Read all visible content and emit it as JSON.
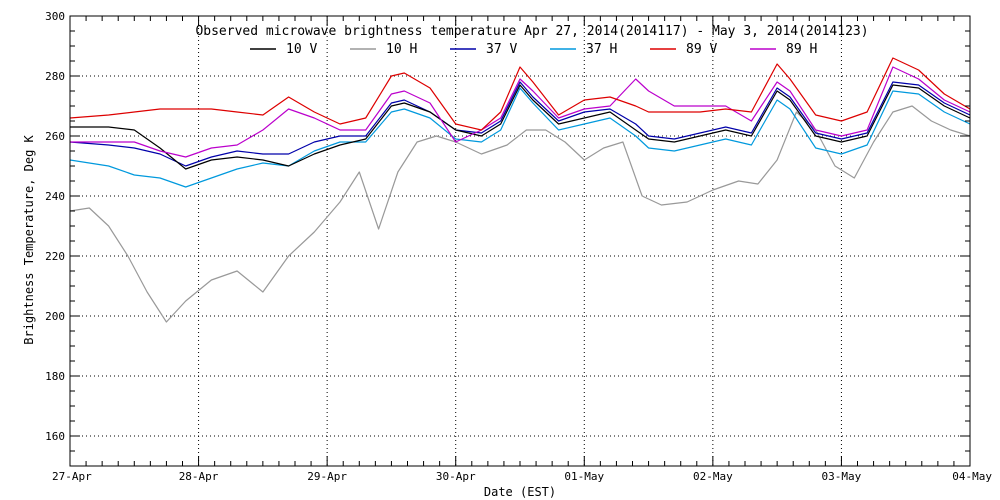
{
  "chart_data": {
    "type": "line",
    "title": "Observed microwave brightness temperature Apr 27, 2014(2014117) - May  3, 2014(2014123)",
    "xlabel": "Date (EST)",
    "ylabel": "Brightness Temperature, Deg K",
    "ylim": [
      150,
      300
    ],
    "xlim": [
      0,
      7
    ],
    "y_ticks": [
      160,
      180,
      200,
      220,
      240,
      260,
      280,
      300
    ],
    "x_tick_labels": [
      "27-Apr",
      "28-Apr",
      "29-Apr",
      "30-Apr",
      "01-May",
      "02-May",
      "03-May",
      "04-May"
    ],
    "grid": true,
    "legend_position": "top",
    "series": [
      {
        "name": "10 V",
        "color": "#000000",
        "x": [
          0,
          0.3,
          0.5,
          0.7,
          0.9,
          1.1,
          1.3,
          1.5,
          1.7,
          1.9,
          2.1,
          2.3,
          2.5,
          2.6,
          2.8,
          3.0,
          3.2,
          3.35,
          3.5,
          3.6,
          3.8,
          4.0,
          4.2,
          4.4,
          4.5,
          4.7,
          4.9,
          5.1,
          5.3,
          5.5,
          5.6,
          5.8,
          6.0,
          6.2,
          6.4,
          6.6,
          6.8,
          7.0
        ],
        "y": [
          263,
          263,
          262,
          256,
          249,
          252,
          253,
          252,
          250,
          254,
          257,
          259,
          270,
          271,
          268,
          262,
          260,
          264,
          277,
          272,
          264,
          266,
          268,
          262,
          259,
          258,
          260,
          262,
          260,
          275,
          272,
          260,
          258,
          260,
          277,
          276,
          270,
          266
        ]
      },
      {
        "name": "10 H",
        "color": "#999999",
        "x": [
          0,
          0.15,
          0.3,
          0.45,
          0.6,
          0.75,
          0.9,
          1.1,
          1.3,
          1.5,
          1.7,
          1.9,
          2.1,
          2.25,
          2.4,
          2.55,
          2.7,
          2.85,
          3.0,
          3.2,
          3.4,
          3.55,
          3.7,
          3.85,
          4.0,
          4.15,
          4.3,
          4.45,
          4.6,
          4.8,
          5.0,
          5.2,
          5.35,
          5.5,
          5.65,
          5.8,
          5.95,
          6.1,
          6.25,
          6.4,
          6.55,
          6.7,
          6.85,
          7.0
        ],
        "y": [
          235,
          236,
          230,
          220,
          208,
          198,
          205,
          212,
          215,
          208,
          220,
          228,
          238,
          248,
          229,
          248,
          258,
          260,
          258,
          254,
          257,
          262,
          262,
          258,
          252,
          256,
          258,
          240,
          237,
          238,
          242,
          245,
          244,
          252,
          268,
          262,
          250,
          246,
          258,
          268,
          270,
          265,
          262,
          260
        ]
      },
      {
        "name": "37 V",
        "color": "#0000aa",
        "x": [
          0,
          0.3,
          0.5,
          0.7,
          0.9,
          1.1,
          1.3,
          1.5,
          1.7,
          1.9,
          2.1,
          2.3,
          2.5,
          2.6,
          2.8,
          3.0,
          3.2,
          3.35,
          3.5,
          3.6,
          3.8,
          4.0,
          4.2,
          4.4,
          4.5,
          4.7,
          4.9,
          5.1,
          5.3,
          5.5,
          5.6,
          5.8,
          6.0,
          6.2,
          6.4,
          6.6,
          6.8,
          7.0
        ],
        "y": [
          258,
          257,
          256,
          254,
          250,
          253,
          255,
          254,
          254,
          258,
          260,
          260,
          271,
          272,
          268,
          262,
          261,
          265,
          278,
          273,
          265,
          268,
          269,
          264,
          260,
          259,
          261,
          263,
          261,
          276,
          273,
          261,
          259,
          261,
          278,
          277,
          271,
          267
        ]
      },
      {
        "name": "37 H",
        "color": "#0099dd",
        "x": [
          0,
          0.3,
          0.5,
          0.7,
          0.9,
          1.1,
          1.3,
          1.5,
          1.7,
          1.9,
          2.1,
          2.3,
          2.5,
          2.6,
          2.8,
          3.0,
          3.2,
          3.35,
          3.5,
          3.6,
          3.8,
          4.0,
          4.2,
          4.4,
          4.5,
          4.7,
          4.9,
          5.1,
          5.3,
          5.5,
          5.6,
          5.8,
          6.0,
          6.2,
          6.4,
          6.6,
          6.8,
          7.0
        ],
        "y": [
          252,
          250,
          247,
          246,
          243,
          246,
          249,
          251,
          250,
          255,
          258,
          258,
          268,
          269,
          266,
          259,
          258,
          262,
          276,
          271,
          262,
          264,
          266,
          260,
          256,
          255,
          257,
          259,
          257,
          272,
          269,
          256,
          254,
          257,
          275,
          274,
          268,
          264
        ]
      },
      {
        "name": "89 V",
        "color": "#dd0000",
        "x": [
          0,
          0.3,
          0.5,
          0.7,
          0.9,
          1.1,
          1.3,
          1.5,
          1.7,
          1.9,
          2.1,
          2.3,
          2.5,
          2.6,
          2.8,
          3.0,
          3.2,
          3.35,
          3.5,
          3.6,
          3.8,
          4.0,
          4.2,
          4.4,
          4.5,
          4.7,
          4.9,
          5.1,
          5.3,
          5.5,
          5.6,
          5.8,
          6.0,
          6.2,
          6.4,
          6.6,
          6.8,
          7.0
        ],
        "y": [
          266,
          267,
          268,
          269,
          269,
          269,
          268,
          267,
          273,
          268,
          264,
          266,
          280,
          281,
          276,
          264,
          262,
          268,
          283,
          278,
          267,
          272,
          273,
          270,
          268,
          268,
          268,
          269,
          268,
          284,
          279,
          267,
          265,
          268,
          286,
          282,
          274,
          269
        ]
      },
      {
        "name": "89 H",
        "color": "#bb00cc",
        "x": [
          0,
          0.3,
          0.5,
          0.7,
          0.9,
          1.1,
          1.3,
          1.5,
          1.7,
          1.9,
          2.1,
          2.3,
          2.5,
          2.6,
          2.8,
          3.0,
          3.2,
          3.35,
          3.5,
          3.6,
          3.8,
          4.0,
          4.2,
          4.4,
          4.5,
          4.7,
          4.9,
          5.1,
          5.3,
          5.5,
          5.6,
          5.8,
          6.0,
          6.2,
          6.4,
          6.6,
          6.8,
          7.0
        ],
        "y": [
          258,
          258,
          258,
          255,
          253,
          256,
          257,
          262,
          269,
          266,
          262,
          262,
          274,
          275,
          271,
          258,
          262,
          266,
          279,
          275,
          266,
          269,
          270,
          279,
          275,
          270,
          270,
          270,
          265,
          278,
          275,
          262,
          260,
          262,
          283,
          279,
          272,
          268
        ]
      }
    ]
  }
}
